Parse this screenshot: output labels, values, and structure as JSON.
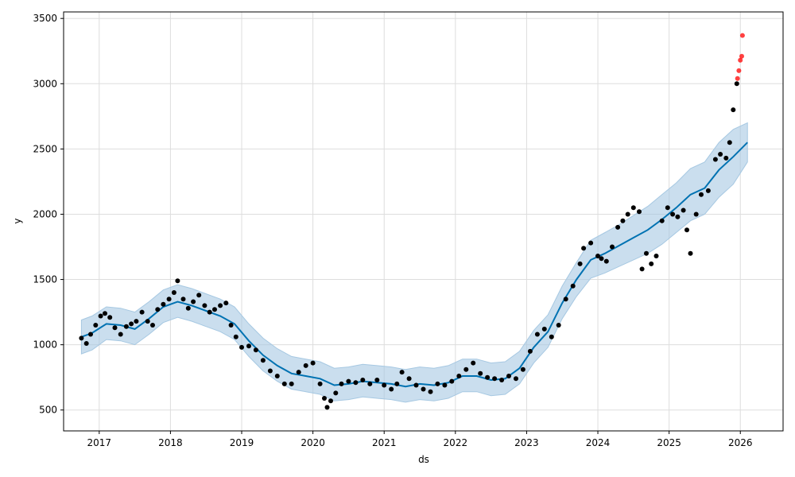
{
  "chart_data": {
    "type": "line",
    "xlabel": "ds",
    "ylabel": "y",
    "xlim": [
      2016.5,
      2026.6
    ],
    "ylim": [
      340,
      3550
    ],
    "grid": true,
    "x_ticks": [
      {
        "value": 2017,
        "label": "2017"
      },
      {
        "value": 2018,
        "label": "2018"
      },
      {
        "value": 2019,
        "label": "2019"
      },
      {
        "value": 2020,
        "label": "2020"
      },
      {
        "value": 2021,
        "label": "2021"
      },
      {
        "value": 2022,
        "label": "2022"
      },
      {
        "value": 2023,
        "label": "2023"
      },
      {
        "value": 2024,
        "label": "2024"
      },
      {
        "value": 2025,
        "label": "2025"
      },
      {
        "value": 2026,
        "label": "2026"
      }
    ],
    "y_ticks": [
      {
        "value": 500,
        "label": "500"
      },
      {
        "value": 1000,
        "label": "1000"
      },
      {
        "value": 1500,
        "label": "1500"
      },
      {
        "value": 2000,
        "label": "2000"
      },
      {
        "value": 2500,
        "label": "2500"
      },
      {
        "value": 3000,
        "label": "3000"
      },
      {
        "value": 3500,
        "label": "3500"
      }
    ],
    "colors": {
      "trend": "#0072b2",
      "band": "#a6c8e2",
      "observed": "#000000",
      "outlier": "#ff0000"
    },
    "series": [
      {
        "kind": "forecast",
        "x": [
          2016.75,
          2016.9,
          2017.1,
          2017.3,
          2017.5,
          2017.7,
          2017.9,
          2018.1,
          2018.3,
          2018.5,
          2018.7,
          2018.9,
          2019.1,
          2019.3,
          2019.5,
          2019.7,
          2019.9,
          2020.1,
          2020.3,
          2020.5,
          2020.7,
          2020.9,
          2021.1,
          2021.3,
          2021.5,
          2021.7,
          2021.9,
          2022.1,
          2022.3,
          2022.5,
          2022.7,
          2022.9,
          2023.1,
          2023.3,
          2023.5,
          2023.7,
          2023.9,
          2024.1,
          2024.3,
          2024.5,
          2024.7,
          2024.9,
          2025.1,
          2025.3,
          2025.5,
          2025.7,
          2025.9,
          2026.1
        ],
        "y": [
          1060,
          1090,
          1160,
          1150,
          1120,
          1200,
          1290,
          1330,
          1300,
          1260,
          1220,
          1160,
          1030,
          920,
          840,
          780,
          760,
          740,
          690,
          700,
          720,
          710,
          700,
          680,
          700,
          690,
          710,
          760,
          760,
          730,
          740,
          820,
          980,
          1100,
          1320,
          1500,
          1650,
          1700,
          1760,
          1820,
          1880,
          1960,
          2050,
          2150,
          2200,
          2340,
          2440,
          2550
        ],
        "lower": [
          930,
          960,
          1040,
          1030,
          1000,
          1080,
          1170,
          1210,
          1180,
          1140,
          1100,
          1040,
          910,
          800,
          720,
          660,
          640,
          620,
          570,
          580,
          600,
          590,
          580,
          560,
          580,
          570,
          590,
          640,
          640,
          610,
          620,
          700,
          860,
          980,
          1200,
          1370,
          1510,
          1550,
          1600,
          1650,
          1700,
          1770,
          1860,
          1950,
          2000,
          2130,
          2230,
          2400
        ],
        "upper": [
          1190,
          1220,
          1290,
          1280,
          1250,
          1330,
          1420,
          1460,
          1430,
          1390,
          1350,
          1290,
          1160,
          1050,
          970,
          910,
          890,
          870,
          820,
          830,
          850,
          840,
          830,
          810,
          830,
          820,
          840,
          890,
          890,
          860,
          870,
          950,
          1110,
          1230,
          1450,
          1630,
          1800,
          1860,
          1920,
          1990,
          2060,
          2150,
          2240,
          2350,
          2400,
          2550,
          2650,
          2700
        ]
      },
      {
        "kind": "observed",
        "x": [
          2016.75,
          2016.82,
          2016.88,
          2016.95,
          2017.02,
          2017.08,
          2017.15,
          2017.22,
          2017.3,
          2017.38,
          2017.45,
          2017.52,
          2017.6,
          2017.68,
          2017.75,
          2017.82,
          2017.9,
          2017.98,
          2018.05,
          2018.1,
          2018.18,
          2018.25,
          2018.32,
          2018.4,
          2018.48,
          2018.55,
          2018.62,
          2018.7,
          2018.78,
          2018.85,
          2018.92,
          2019.0,
          2019.1,
          2019.2,
          2019.3,
          2019.4,
          2019.5,
          2019.6,
          2019.7,
          2019.8,
          2019.9,
          2020.0,
          2020.1,
          2020.16,
          2020.2,
          2020.25,
          2020.32,
          2020.4,
          2020.5,
          2020.6,
          2020.7,
          2020.8,
          2020.9,
          2021.0,
          2021.1,
          2021.18,
          2021.25,
          2021.35,
          2021.45,
          2021.55,
          2021.65,
          2021.75,
          2021.85,
          2021.95,
          2022.05,
          2022.15,
          2022.25,
          2022.35,
          2022.45,
          2022.55,
          2022.65,
          2022.75,
          2022.85,
          2022.95,
          2023.05,
          2023.15,
          2023.25,
          2023.35,
          2023.45,
          2023.55,
          2023.65,
          2023.75,
          2023.8,
          2023.9,
          2024.0,
          2024.05,
          2024.12,
          2024.2,
          2024.28,
          2024.35,
          2024.42,
          2024.5,
          2024.58,
          2024.62,
          2024.68,
          2024.75,
          2024.82,
          2024.9,
          2024.98,
          2025.05,
          2025.12,
          2025.2,
          2025.25,
          2025.3,
          2025.38,
          2025.45,
          2025.55,
          2025.65,
          2025.72,
          2025.8,
          2025.85,
          2025.9,
          2025.95
        ],
        "y": [
          1050,
          1010,
          1080,
          1150,
          1220,
          1240,
          1210,
          1130,
          1080,
          1140,
          1160,
          1180,
          1250,
          1180,
          1150,
          1270,
          1310,
          1350,
          1400,
          1490,
          1350,
          1280,
          1330,
          1380,
          1300,
          1250,
          1270,
          1300,
          1320,
          1150,
          1060,
          980,
          990,
          960,
          880,
          800,
          760,
          700,
          700,
          790,
          840,
          860,
          700,
          590,
          520,
          570,
          630,
          700,
          720,
          710,
          730,
          700,
          730,
          690,
          660,
          700,
          790,
          740,
          690,
          660,
          640,
          700,
          690,
          720,
          760,
          810,
          860,
          780,
          750,
          740,
          730,
          760,
          740,
          810,
          950,
          1080,
          1120,
          1060,
          1150,
          1350,
          1450,
          1620,
          1740,
          1780,
          1680,
          1660,
          1640,
          1750,
          1900,
          1950,
          2000,
          2050,
          2020,
          1580,
          1700,
          1620,
          1680,
          1950,
          2050,
          2000,
          1980,
          2030,
          1880,
          1700,
          2000,
          2150,
          2180,
          2420,
          2460,
          2430,
          2550,
          2800,
          3000
        ],
        "outliers_x": [
          2025.96,
          2025.98,
          2026.0,
          2026.02,
          2026.03
        ],
        "outliers_y": [
          3040,
          3100,
          3180,
          3210,
          3370
        ]
      }
    ]
  }
}
